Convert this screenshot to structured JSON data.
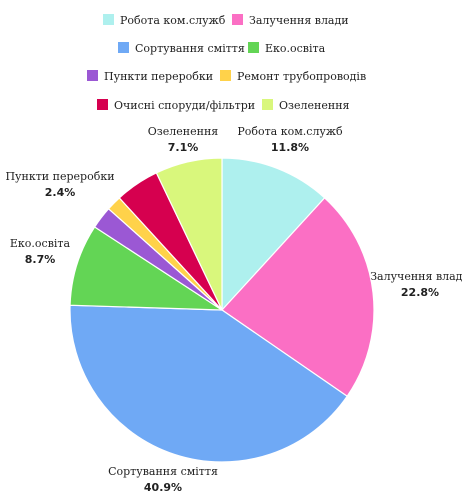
{
  "chart_data": {
    "type": "pie",
    "title": "",
    "legend_position": "top",
    "slices": [
      {
        "label": "Робота ком.служб",
        "percent_label": "11.8%",
        "value": 11.8,
        "color": "#aef0ee"
      },
      {
        "label": "Залучення влади",
        "percent_label": "22.8%",
        "value": 22.8,
        "color": "#fb6fc4"
      },
      {
        "label": "Сортування сміття",
        "percent_label": "40.9%",
        "value": 40.9,
        "color": "#6fa9f5"
      },
      {
        "label": "Еко.освіта",
        "percent_label": "8.7%",
        "value": 8.7,
        "color": "#63d555"
      },
      {
        "label": "Пункти переробки",
        "percent_label": "2.4%",
        "value": 2.4,
        "color": "#9b58d4"
      },
      {
        "label": "Ремонт трубопроводів",
        "percent_label": "",
        "value": 1.6,
        "color": "#ffd24a"
      },
      {
        "label": "Очисні споруди/фільтри",
        "percent_label": "",
        "value": 4.7,
        "color": "#d6004f"
      },
      {
        "label": "Озеленення",
        "percent_label": "7.1%",
        "value": 7.1,
        "color": "#d9f77c"
      }
    ],
    "start_angle_deg": 0,
    "direction": "clockwise"
  }
}
